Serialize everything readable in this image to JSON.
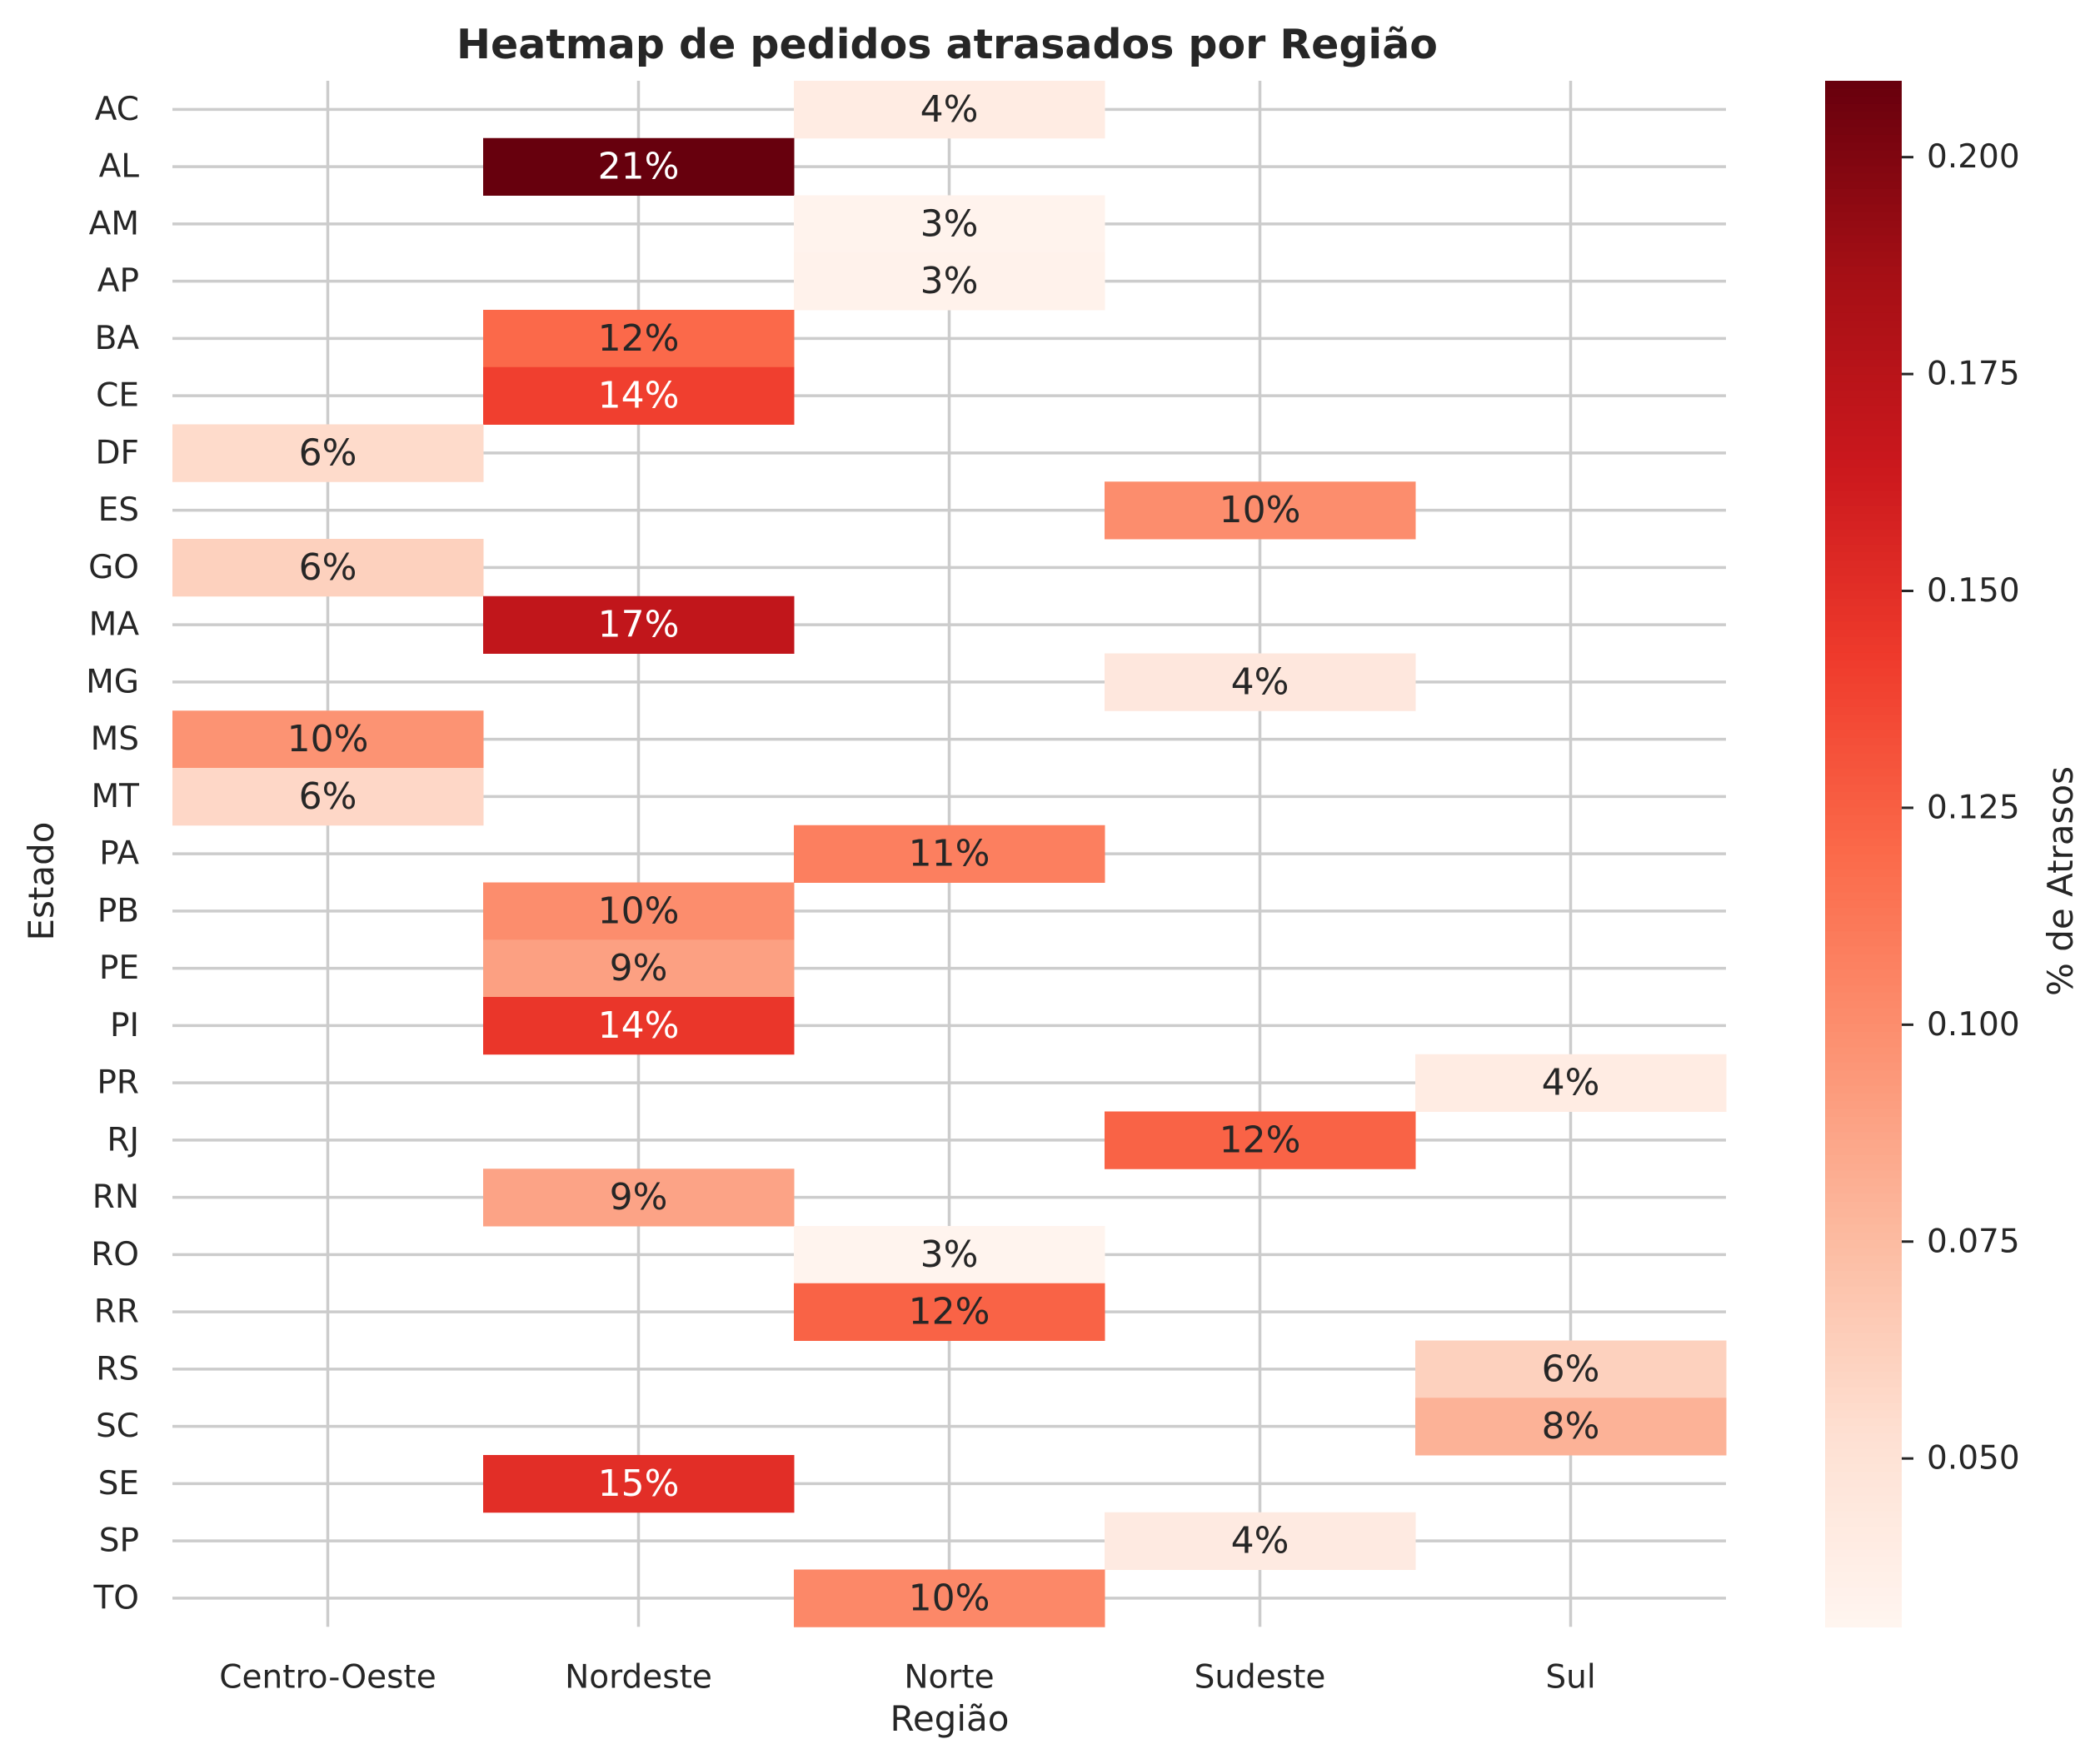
{
  "chart_data": {
    "type": "heatmap",
    "title": "Heatmap de pedidos atrasados por Região",
    "xlabel": "Região",
    "ylabel": "Estado",
    "x_categories": [
      "Centro-Oeste",
      "Nordeste",
      "Norte",
      "Sudeste",
      "Sul"
    ],
    "y_categories": [
      "AC",
      "AL",
      "AM",
      "AP",
      "BA",
      "CE",
      "DF",
      "ES",
      "GO",
      "MA",
      "MG",
      "MS",
      "MT",
      "PA",
      "PB",
      "PE",
      "PI",
      "PR",
      "RJ",
      "RN",
      "RO",
      "RR",
      "RS",
      "SC",
      "SE",
      "SP",
      "TO"
    ],
    "cells": [
      {
        "estado": "AC",
        "regiao": "Norte",
        "value": 0.04,
        "label": "4%"
      },
      {
        "estado": "AL",
        "regiao": "Nordeste",
        "value": 0.209,
        "label": "21%"
      },
      {
        "estado": "AM",
        "regiao": "Norte",
        "value": 0.033,
        "label": "3%"
      },
      {
        "estado": "AP",
        "regiao": "Norte",
        "value": 0.034,
        "label": "3%"
      },
      {
        "estado": "BA",
        "regiao": "Nordeste",
        "value": 0.12,
        "label": "12%"
      },
      {
        "estado": "CE",
        "regiao": "Nordeste",
        "value": 0.14,
        "label": "14%"
      },
      {
        "estado": "DF",
        "regiao": "Centro-Oeste",
        "value": 0.056,
        "label": "6%"
      },
      {
        "estado": "ES",
        "regiao": "Sudeste",
        "value": 0.1,
        "label": "10%"
      },
      {
        "estado": "GO",
        "regiao": "Centro-Oeste",
        "value": 0.062,
        "label": "6%"
      },
      {
        "estado": "MA",
        "regiao": "Nordeste",
        "value": 0.17,
        "label": "17%"
      },
      {
        "estado": "MG",
        "regiao": "Sudeste",
        "value": 0.045,
        "label": "4%"
      },
      {
        "estado": "MS",
        "regiao": "Centro-Oeste",
        "value": 0.097,
        "label": "10%"
      },
      {
        "estado": "MT",
        "regiao": "Centro-Oeste",
        "value": 0.058,
        "label": "6%"
      },
      {
        "estado": "PA",
        "regiao": "Norte",
        "value": 0.108,
        "label": "11%"
      },
      {
        "estado": "PB",
        "regiao": "Nordeste",
        "value": 0.1,
        "label": "10%"
      },
      {
        "estado": "PE",
        "regiao": "Nordeste",
        "value": 0.09,
        "label": "9%"
      },
      {
        "estado": "PI",
        "regiao": "Nordeste",
        "value": 0.145,
        "label": "14%"
      },
      {
        "estado": "PR",
        "regiao": "Sul",
        "value": 0.04,
        "label": "4%"
      },
      {
        "estado": "RJ",
        "regiao": "Sudeste",
        "value": 0.123,
        "label": "12%"
      },
      {
        "estado": "RN",
        "regiao": "Nordeste",
        "value": 0.088,
        "label": "9%"
      },
      {
        "estado": "RO",
        "regiao": "Norte",
        "value": 0.032,
        "label": "3%"
      },
      {
        "estado": "RR",
        "regiao": "Norte",
        "value": 0.123,
        "label": "12%"
      },
      {
        "estado": "RS",
        "regiao": "Sul",
        "value": 0.062,
        "label": "6%"
      },
      {
        "estado": "SC",
        "regiao": "Sul",
        "value": 0.08,
        "label": "8%"
      },
      {
        "estado": "SE",
        "regiao": "Nordeste",
        "value": 0.15,
        "label": "15%"
      },
      {
        "estado": "SP",
        "regiao": "Sudeste",
        "value": 0.042,
        "label": "4%"
      },
      {
        "estado": "TO",
        "regiao": "Norte",
        "value": 0.103,
        "label": "10%"
      }
    ],
    "colorbar": {
      "label": "% de Atrasos",
      "colormap": "Reds",
      "vmin": 0.0306,
      "vmax": 0.2088,
      "ticks": [
        0.05,
        0.075,
        0.1,
        0.125,
        0.15,
        0.175,
        0.2
      ],
      "tick_labels": [
        "0.050",
        "0.075",
        "0.100",
        "0.125",
        "0.150",
        "0.175",
        "0.200"
      ]
    },
    "grid": true
  }
}
